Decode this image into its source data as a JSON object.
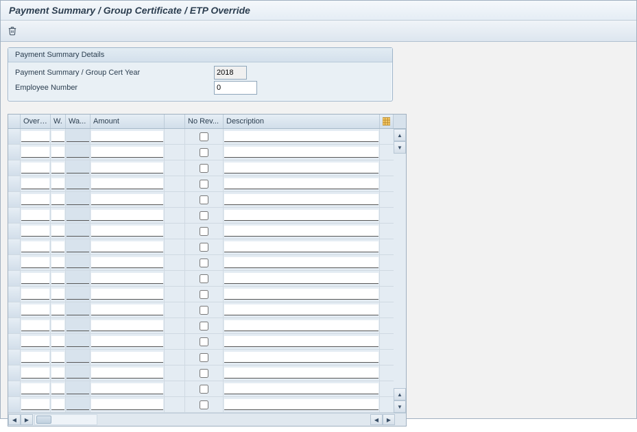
{
  "window": {
    "title": "Payment Summary / Group Certificate / ETP Override"
  },
  "toolbar": {
    "delete_icon": "trash-icon"
  },
  "details": {
    "header": "Payment Summary Details",
    "year_label": "Payment Summary / Group Cert Year",
    "year_value": "2018",
    "emp_label": "Employee Number",
    "emp_value": "0"
  },
  "grid": {
    "columns": {
      "overr": "Overr...",
      "w": "W.",
      "wa": "Wa...",
      "amount": "Amount",
      "no_rev": "No Rev...",
      "description": "Description"
    },
    "row_count": 18,
    "colors": {
      "header_bg_top": "#e6eef5",
      "header_bg_bottom": "#d2deea",
      "body_bg": "#e4ecf3",
      "border": "#cfd9e2",
      "value_help_bg": "#d8e3ed"
    }
  }
}
